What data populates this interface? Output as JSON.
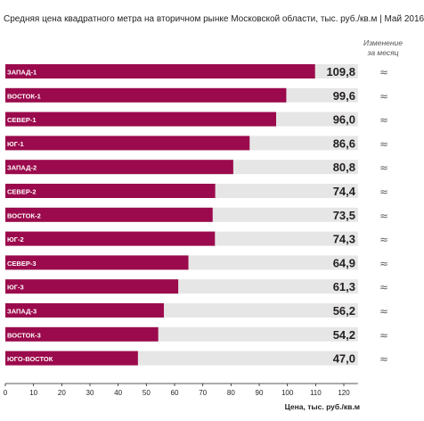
{
  "chart_data": {
    "type": "bar",
    "orientation": "horizontal",
    "title": "Средняя цена квадратного метра на вторичном рынке Московской области, тыс. руб./кв.м | Май 2016",
    "change_header": "Изменение за месяц",
    "categories": [
      "ЗАПАД-1",
      "ВОСТОК-1",
      "СЕВЕР-1",
      "ЮГ-1",
      "ЗАПАД-2",
      "СЕВЕР-2",
      "ВОСТОК-2",
      "ЮГ-2",
      "СЕВЕР-3",
      "ЮГ-3",
      "ЗАПАД-3",
      "ВОСТОК-3",
      "ЮГО-ВОСТОК"
    ],
    "values": [
      109.8,
      99.6,
      96.0,
      86.6,
      80.8,
      74.4,
      73.5,
      74.3,
      64.9,
      61.3,
      56.2,
      54.2,
      47.0
    ],
    "value_labels": [
      "109,8",
      "99,6",
      "96,0",
      "86,6",
      "80,8",
      "74,4",
      "73,5",
      "74,3",
      "64,9",
      "61,3",
      "56,2",
      "54,2",
      "47,0"
    ],
    "change": [
      "≈",
      "≈",
      "≈",
      "≈",
      "≈",
      "≈",
      "≈",
      "≈",
      "≈",
      "≈",
      "≈",
      "≈",
      "≈"
    ],
    "background_max": 125,
    "xlim": [
      0,
      125
    ],
    "xticks": [
      0,
      10,
      20,
      30,
      40,
      50,
      60,
      70,
      80,
      90,
      100,
      110,
      120
    ],
    "xlabel": "Цена, тыс. руб./кв.м",
    "colors": {
      "bar": "#9b0a4c",
      "background_bar": "#e6e6e6",
      "text": "#231f20",
      "change": "#666666"
    }
  }
}
